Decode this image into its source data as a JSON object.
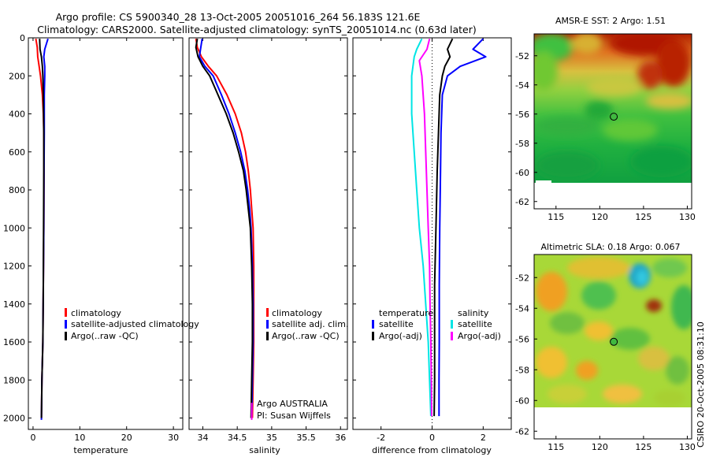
{
  "title": {
    "line1": "Argo profile: CS 5900340_28 13-Oct-2005 20051016_264 56.183S 121.6E",
    "line2": "Climatology: CARS2000. Satellite-adjusted climatology: synTS_20051014.nc (0.63d later)"
  },
  "side_label": "CSIRO 20-Oct-2005 08:31:10",
  "colors": {
    "climatology": "#ff0000",
    "satellite": "#0000ff",
    "argo": "#000000",
    "salinity_satellite": "#00e5e5",
    "salinity_argo": "#ff00ff"
  },
  "chart_data": [
    {
      "type": "line",
      "name": "temperature-profile",
      "xlabel": "temperature",
      "xlim": [
        -1,
        32
      ],
      "ylim": [
        2060,
        0
      ],
      "xticks": [
        0,
        10,
        20,
        30
      ],
      "yticks": [
        0,
        200,
        400,
        600,
        800,
        1000,
        1200,
        1400,
        1600,
        1800,
        2000
      ],
      "legend": {
        "position": "lower-right",
        "entries": [
          "climatology",
          "satellite-adjusted climatology",
          "Argo(..raw -QC)"
        ]
      },
      "series": [
        {
          "name": "climatology",
          "color": "#ff0000",
          "points": [
            [
              0.6,
              5
            ],
            [
              0.9,
              50
            ],
            [
              1.0,
              100
            ],
            [
              1.3,
              150
            ],
            [
              1.6,
              200
            ],
            [
              2.0,
              300
            ],
            [
              2.2,
              400
            ],
            [
              2.3,
              500
            ],
            [
              2.35,
              700
            ],
            [
              2.3,
              1000
            ],
            [
              2.2,
              1300
            ],
            [
              2.1,
              1600
            ],
            [
              1.9,
              1800
            ],
            [
              1.8,
              2000
            ]
          ]
        },
        {
          "name": "satellite-adjusted climatology",
          "color": "#0000ff",
          "points": [
            [
              3.2,
              5
            ],
            [
              2.5,
              60
            ],
            [
              2.3,
              100
            ],
            [
              2.5,
              150
            ],
            [
              2.5,
              200
            ],
            [
              2.4,
              300
            ],
            [
              2.4,
              500
            ],
            [
              2.35,
              700
            ],
            [
              2.3,
              1000
            ],
            [
              2.2,
              1300
            ],
            [
              2.1,
              1600
            ],
            [
              1.9,
              1800
            ],
            [
              1.8,
              2010
            ]
          ]
        },
        {
          "name": "Argo(..raw -QC)",
          "color": "#000000",
          "points": [
            [
              1.4,
              5
            ],
            [
              1.5,
              60
            ],
            [
              1.8,
              100
            ],
            [
              2.0,
              150
            ],
            [
              2.1,
              200
            ],
            [
              2.2,
              300
            ],
            [
              2.3,
              500
            ],
            [
              2.3,
              700
            ],
            [
              2.25,
              1000
            ],
            [
              2.2,
              1300
            ],
            [
              2.1,
              1600
            ],
            [
              1.9,
              1800
            ],
            [
              1.8,
              2000
            ]
          ]
        }
      ]
    },
    {
      "type": "line",
      "name": "salinity-profile",
      "xlabel": "salinity",
      "xlim": [
        33.8,
        36.1
      ],
      "ylim": [
        2060,
        0
      ],
      "xticks": [
        34,
        34.5,
        35,
        35.5,
        36
      ],
      "legend": {
        "position": "lower-right",
        "entries": [
          "climatology",
          "satellite adj. clim.",
          "Argo(..raw -QC)"
        ]
      },
      "annotations": [
        "Argo AUSTRALIA",
        "PI: Susan Wijffels"
      ],
      "series": [
        {
          "name": "climatology",
          "color": "#ff0000",
          "points": [
            [
              33.9,
              5
            ],
            [
              33.92,
              50
            ],
            [
              33.98,
              100
            ],
            [
              34.08,
              150
            ],
            [
              34.2,
              200
            ],
            [
              34.35,
              300
            ],
            [
              34.47,
              400
            ],
            [
              34.56,
              500
            ],
            [
              34.62,
              600
            ],
            [
              34.66,
              700
            ],
            [
              34.69,
              800
            ],
            [
              34.71,
              900
            ],
            [
              34.73,
              1000
            ],
            [
              34.74,
              1200
            ],
            [
              34.74,
              1400
            ],
            [
              34.74,
              1600
            ],
            [
              34.73,
              1800
            ],
            [
              34.72,
              2000
            ]
          ]
        },
        {
          "name": "satellite adj. clim.",
          "color": "#0000ff",
          "points": [
            [
              33.99,
              5
            ],
            [
              33.97,
              50
            ],
            [
              33.95,
              100
            ],
            [
              34.03,
              150
            ],
            [
              34.15,
              200
            ],
            [
              34.27,
              300
            ],
            [
              34.38,
              400
            ],
            [
              34.47,
              500
            ],
            [
              34.55,
              600
            ],
            [
              34.61,
              700
            ],
            [
              34.65,
              800
            ],
            [
              34.68,
              900
            ],
            [
              34.7,
              1000
            ],
            [
              34.72,
              1200
            ],
            [
              34.73,
              1400
            ],
            [
              34.73,
              1600
            ],
            [
              34.72,
              1800
            ],
            [
              34.71,
              2000
            ]
          ]
        },
        {
          "name": "Argo(..raw -QC)",
          "color": "#000000",
          "points": [
            [
              33.92,
              5
            ],
            [
              33.9,
              50
            ],
            [
              33.93,
              100
            ],
            [
              34.0,
              150
            ],
            [
              34.1,
              200
            ],
            [
              34.22,
              300
            ],
            [
              34.34,
              400
            ],
            [
              34.44,
              500
            ],
            [
              34.52,
              600
            ],
            [
              34.59,
              700
            ],
            [
              34.63,
              800
            ],
            [
              34.66,
              900
            ],
            [
              34.69,
              1000
            ],
            [
              34.71,
              1200
            ],
            [
              34.72,
              1400
            ],
            [
              34.72,
              1600
            ],
            [
              34.71,
              1800
            ],
            [
              34.7,
              2000
            ]
          ]
        },
        {
          "name": "Argo-2",
          "color": "#ff00ff",
          "points": [
            [
              34.71,
              1920
            ],
            [
              34.71,
              2010
            ]
          ]
        }
      ]
    },
    {
      "type": "line",
      "name": "difference-profile",
      "xlabel": "difference from climatology",
      "xlim": [
        -3.1,
        3.1
      ],
      "ylim": [
        2060,
        0
      ],
      "xticks": [
        -2,
        0,
        2
      ],
      "legend": {
        "position": "lower-center",
        "groups": [
          {
            "heading": "temperature",
            "entries": [
              "satellite",
              "Argo(-adj)"
            ]
          },
          {
            "heading": "salinity",
            "entries": [
              "satellite",
              "Argo(-adj)"
            ]
          }
        ]
      },
      "series": [
        {
          "name": "temperature satellite",
          "color": "#0000ff",
          "points": [
            [
              2.0,
              5
            ],
            [
              1.6,
              60
            ],
            [
              2.1,
              100
            ],
            [
              1.1,
              150
            ],
            [
              0.6,
              200
            ],
            [
              0.4,
              300
            ],
            [
              0.35,
              500
            ],
            [
              0.33,
              700
            ],
            [
              0.3,
              1000
            ],
            [
              0.28,
              1300
            ],
            [
              0.28,
              1600
            ],
            [
              0.27,
              1800
            ],
            [
              0.27,
              1990
            ]
          ]
        },
        {
          "name": "temperature Argo(-adj)",
          "color": "#000000",
          "points": [
            [
              0.8,
              5
            ],
            [
              0.6,
              60
            ],
            [
              0.7,
              100
            ],
            [
              0.5,
              150
            ],
            [
              0.4,
              200
            ],
            [
              0.3,
              300
            ],
            [
              0.25,
              500
            ],
            [
              0.2,
              700
            ],
            [
              0.15,
              1000
            ],
            [
              0.1,
              1300
            ],
            [
              0.1,
              1600
            ],
            [
              0.1,
              1800
            ],
            [
              0.08,
              1990
            ]
          ]
        },
        {
          "name": "salinity satellite",
          "color": "#00e5e5",
          "points": [
            [
              -0.4,
              5
            ],
            [
              -0.6,
              60
            ],
            [
              -0.7,
              100
            ],
            [
              -0.8,
              200
            ],
            [
              -0.8,
              400
            ],
            [
              -0.7,
              600
            ],
            [
              -0.6,
              800
            ],
            [
              -0.5,
              1000
            ],
            [
              -0.35,
              1200
            ],
            [
              -0.25,
              1400
            ],
            [
              -0.15,
              1600
            ],
            [
              -0.1,
              1800
            ],
            [
              -0.05,
              1990
            ]
          ]
        },
        {
          "name": "salinity Argo(-adj)",
          "color": "#ff00ff",
          "points": [
            [
              -0.1,
              5
            ],
            [
              -0.2,
              60
            ],
            [
              -0.5,
              120
            ],
            [
              -0.4,
              200
            ],
            [
              -0.3,
              400
            ],
            [
              -0.25,
              600
            ],
            [
              -0.2,
              800
            ],
            [
              -0.15,
              1000
            ],
            [
              -0.1,
              1200
            ],
            [
              -0.08,
              1400
            ],
            [
              -0.05,
              1600
            ],
            [
              -0.03,
              1800
            ],
            [
              -0.02,
              1990
            ]
          ]
        }
      ]
    },
    {
      "type": "heatmap",
      "name": "sst-map",
      "title": "AMSR-E SST: 2 Argo: 1.51",
      "xlim": [
        112.5,
        130.5
      ],
      "ylim": [
        -62.5,
        -50.5
      ],
      "xticks": [
        115,
        120,
        125,
        130
      ],
      "yticks": [
        -52,
        -54,
        -56,
        -58,
        -60,
        -62
      ],
      "marker": {
        "lon": 121.6,
        "lat": -56.183
      },
      "data_extent_lat": [
        -60.2,
        -50.5
      ]
    },
    {
      "type": "heatmap",
      "name": "sla-map",
      "title": "Altimetric SLA: 0.18 Argo: 0.067",
      "xlim": [
        112.5,
        130.5
      ],
      "ylim": [
        -62.5,
        -50.5
      ],
      "xticks": [
        115,
        120,
        125,
        130
      ],
      "yticks": [
        -52,
        -54,
        -56,
        -58,
        -60,
        -62
      ],
      "marker": {
        "lon": 121.6,
        "lat": -56.183
      },
      "data_extent_lat": [
        -60.0,
        -50.5
      ]
    }
  ]
}
